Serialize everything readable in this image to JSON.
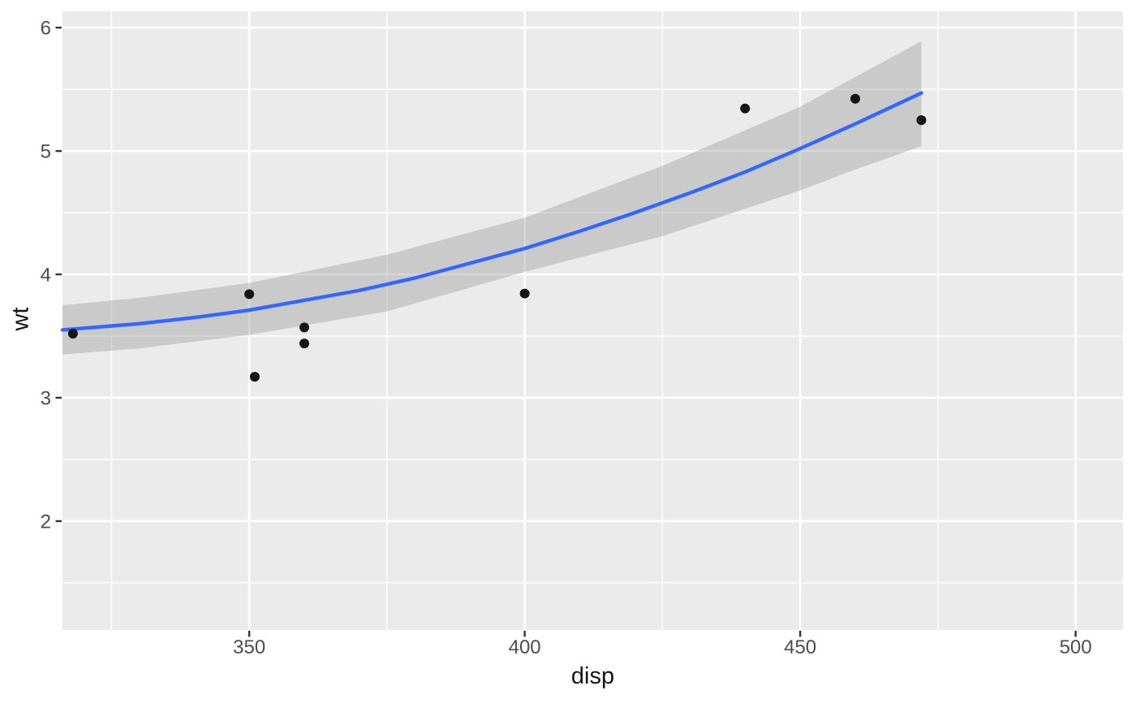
{
  "chart_data": {
    "type": "scatter",
    "title": "",
    "xlabel": "disp",
    "ylabel": "wt",
    "grid": "on",
    "legend": "none",
    "x_domain": [
      316.1,
      508.6
    ],
    "y_domain": [
      1.118,
      6.132
    ],
    "x_major_ticks": [
      350,
      400,
      450,
      500
    ],
    "x_minor_ticks": [
      325,
      375,
      425,
      475
    ],
    "y_major_ticks": [
      2,
      3,
      4,
      5,
      6
    ],
    "y_minor_ticks": [
      1.5,
      2.5,
      3.5,
      4.5,
      5.5
    ],
    "points": [
      [
        318,
        3.52
      ],
      [
        350,
        3.84
      ],
      [
        351,
        3.17
      ],
      [
        360,
        3.44
      ],
      [
        360,
        3.57
      ],
      [
        400,
        3.845
      ],
      [
        440,
        5.345
      ],
      [
        460,
        5.424
      ],
      [
        472,
        5.25
      ]
    ],
    "smooth_line": [
      [
        316.1,
        3.55
      ],
      [
        330,
        3.6
      ],
      [
        340,
        3.65
      ],
      [
        350,
        3.71
      ],
      [
        360,
        3.79
      ],
      [
        370,
        3.87
      ],
      [
        380,
        3.97
      ],
      [
        390,
        4.09
      ],
      [
        400,
        4.21
      ],
      [
        410,
        4.35
      ],
      [
        420,
        4.5
      ],
      [
        430,
        4.66
      ],
      [
        440,
        4.83
      ],
      [
        450,
        5.02
      ],
      [
        460,
        5.22
      ],
      [
        472,
        5.47
      ]
    ],
    "ribbon_x": [
      316.1,
      330,
      350,
      375,
      400,
      425,
      450,
      460,
      472
    ],
    "ribbon_upper": [
      3.75,
      3.81,
      3.93,
      4.16,
      4.46,
      4.88,
      5.36,
      5.6,
      5.89
    ],
    "ribbon_lower": [
      3.35,
      3.4,
      3.51,
      3.7,
      4.02,
      4.31,
      4.68,
      4.85,
      5.04
    ]
  },
  "style": {
    "background": "#FFFFFF",
    "panel_fill": "#EBEBEB",
    "grid_color": "#FFFFFF",
    "ribbon_color": "#999999",
    "ribbon_opacity": "0.4",
    "smooth_line_color": "#3366FF",
    "point_color": "#151515",
    "tick_mark_color": "#333333",
    "tick_label_color": "#4D4D4D",
    "axis_title_color": "#141414"
  }
}
